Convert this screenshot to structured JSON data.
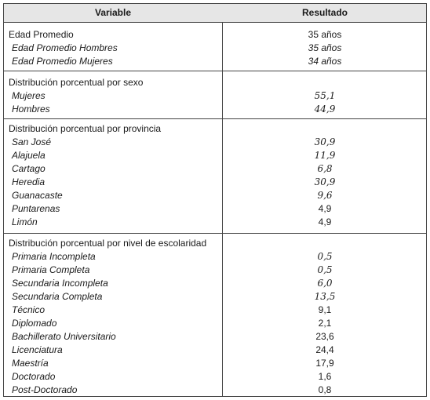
{
  "header": {
    "variable": "Variable",
    "resultado": "Resultado"
  },
  "edad": {
    "title": "Edad Promedio",
    "title_value": "35 años",
    "items": [
      {
        "label": "Edad Promedio Hombres",
        "value": "35 años"
      },
      {
        "label": "Edad Promedio Mujeres",
        "value": "34 años"
      }
    ]
  },
  "sexo": {
    "title": "Distribución porcentual por sexo",
    "items": [
      {
        "label": "Mujeres",
        "value": "55,1"
      },
      {
        "label": "Hombres",
        "value": "44,9"
      }
    ]
  },
  "provincia": {
    "title": "Distribución porcentual por provincia",
    "items": [
      {
        "label": "San José",
        "value": "30,9"
      },
      {
        "label": "Alajuela",
        "value": "11,9"
      },
      {
        "label": "Cartago",
        "value": "6,8"
      },
      {
        "label": "Heredia",
        "value": "30,9"
      },
      {
        "label": "Guanacaste",
        "value": "9,6"
      },
      {
        "label": "Puntarenas",
        "value": "4,9"
      },
      {
        "label": "Limón",
        "value": "4,9"
      }
    ]
  },
  "escolaridad": {
    "title": "Distribución porcentual por nivel de escolaridad",
    "items": [
      {
        "label": "Primaria Incompleta",
        "value": "0,5"
      },
      {
        "label": "Primaria Completa",
        "value": "0,5"
      },
      {
        "label": "Secundaria Incompleta",
        "value": "6,0"
      },
      {
        "label": "Secundaria Completa",
        "value": "13,5"
      },
      {
        "label": "Técnico",
        "value": "9,1"
      },
      {
        "label": "Diplomado",
        "value": "2,1"
      },
      {
        "label": "Bachillerato Universitario",
        "value": "23,6"
      },
      {
        "label": "Licenciatura",
        "value": "24,4"
      },
      {
        "label": "Maestría",
        "value": "17,9"
      },
      {
        "label": "Doctorado",
        "value": "1,6"
      },
      {
        "label": "Post-Doctorado",
        "value": "0,8"
      }
    ]
  }
}
